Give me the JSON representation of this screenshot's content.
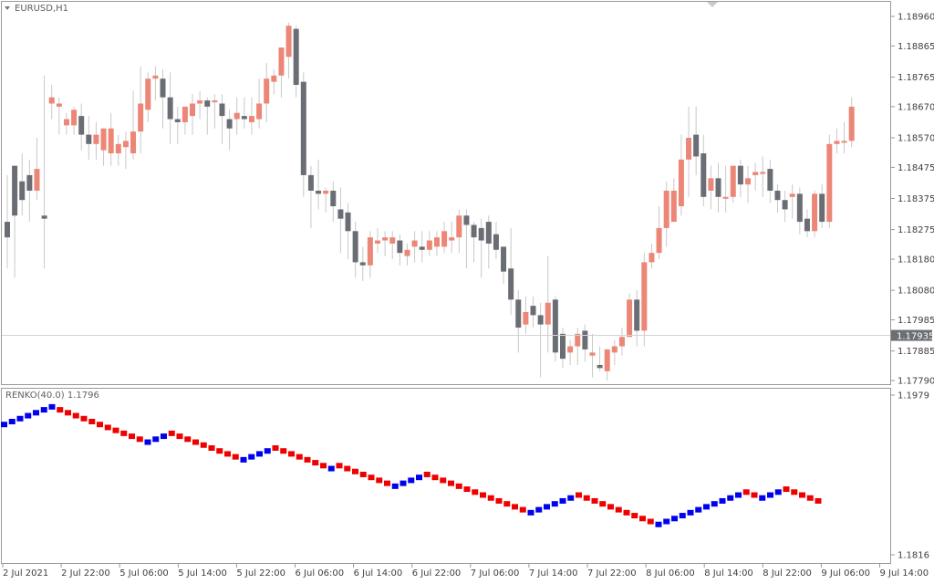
{
  "window": {
    "symbol_label": "EURUSD,H1",
    "indicator_label": "RENKO(40.0) 1.1796"
  },
  "colors": {
    "bull": "#ec8677",
    "bear": "#6a6e74",
    "renko_up": "#0000ee",
    "renko_down": "#ee0000",
    "grid": "#c9c9c9",
    "price_tag_bg": "#6b6e73"
  },
  "chart_data": [
    {
      "type": "candlestick",
      "title": "EURUSD,H1",
      "ylim": [
        1.1779,
        1.1896
      ],
      "y_ticks": [
        "1.18960",
        "1.18865",
        "1.18765",
        "1.18670",
        "1.18570",
        "1.18475",
        "1.18375",
        "1.18275",
        "1.18180",
        "1.18080",
        "1.17985",
        "1.17885",
        "1.17790"
      ],
      "current_price": "1.17935",
      "current_price_value": 1.17935,
      "candles": [
        [
          1.183,
          1.1845,
          1.1825,
          1.1815
        ],
        [
          1.1848,
          1.1848,
          1.1832,
          1.1812
        ],
        [
          1.1843,
          1.1852,
          1.1837,
          1.1832
        ],
        [
          1.1845,
          1.185,
          1.184,
          1.183
        ],
        [
          1.184,
          1.1857,
          1.1847,
          1.1837
        ],
        [
          1.1832,
          1.1877,
          1.1831,
          1.1815
        ],
        [
          1.1868,
          1.1874,
          1.187,
          1.1863
        ],
        [
          1.1867,
          1.187,
          1.1868,
          1.1858
        ],
        [
          1.1861,
          1.1865,
          1.1863,
          1.1858
        ],
        [
          1.1861,
          1.1867,
          1.1866,
          1.1858
        ],
        [
          1.1864,
          1.1868,
          1.1858,
          1.1853
        ],
        [
          1.1858,
          1.1864,
          1.1855,
          1.185
        ],
        [
          1.1855,
          1.1862,
          1.1858,
          1.185
        ],
        [
          1.1853,
          1.1858,
          1.186,
          1.1848
        ],
        [
          1.1852,
          1.1865,
          1.186,
          1.1848
        ],
        [
          1.1852,
          1.1858,
          1.1855,
          1.1848
        ],
        [
          1.1854,
          1.1859,
          1.1856,
          1.1847
        ],
        [
          1.1852,
          1.1872,
          1.1859,
          1.185
        ],
        [
          1.1859,
          1.188,
          1.1868,
          1.1852
        ],
        [
          1.1866,
          1.1878,
          1.1876,
          1.1862
        ],
        [
          1.1876,
          1.188,
          1.1877,
          1.1869
        ],
        [
          1.1876,
          1.1879,
          1.187,
          1.186
        ],
        [
          1.187,
          1.1878,
          1.1863,
          1.1855
        ],
        [
          1.1863,
          1.1867,
          1.1862,
          1.1855
        ],
        [
          1.1862,
          1.1866,
          1.1867,
          1.1858
        ],
        [
          1.1864,
          1.1871,
          1.1868,
          1.1858
        ],
        [
          1.1868,
          1.1872,
          1.1869,
          1.1863
        ],
        [
          1.1869,
          1.187,
          1.1867,
          1.1858
        ],
        [
          1.1869,
          1.1871,
          1.1869,
          1.186
        ],
        [
          1.1868,
          1.1871,
          1.1864,
          1.1855
        ],
        [
          1.1863,
          1.1866,
          1.186,
          1.1853
        ],
        [
          1.1863,
          1.187,
          1.1865,
          1.1858
        ],
        [
          1.1864,
          1.187,
          1.1863,
          1.186
        ],
        [
          1.1862,
          1.187,
          1.1864,
          1.1858
        ],
        [
          1.1863,
          1.1876,
          1.1868,
          1.186
        ],
        [
          1.1868,
          1.1881,
          1.1876,
          1.1862
        ],
        [
          1.1875,
          1.1879,
          1.1877,
          1.1871
        ],
        [
          1.1877,
          1.1885,
          1.1886,
          1.187
        ],
        [
          1.1883,
          1.1894,
          1.1893,
          1.1876
        ],
        [
          1.1892,
          1.1893,
          1.1874,
          1.187
        ],
        [
          1.1875,
          1.1878,
          1.1845,
          1.1838
        ],
        [
          1.1845,
          1.1848,
          1.184,
          1.1828
        ],
        [
          1.184,
          1.185,
          1.1839,
          1.1834
        ],
        [
          1.1839,
          1.1841,
          1.184,
          1.1833
        ],
        [
          1.184,
          1.1843,
          1.1835,
          1.183
        ],
        [
          1.1834,
          1.1841,
          1.1831,
          1.182
        ],
        [
          1.1833,
          1.1836,
          1.1827,
          1.1818
        ],
        [
          1.1827,
          1.183,
          1.1817,
          1.1812
        ],
        [
          1.1817,
          1.1822,
          1.1816,
          1.1811
        ],
        [
          1.1816,
          1.1827,
          1.1825,
          1.1812
        ],
        [
          1.1823,
          1.1828,
          1.1824,
          1.182
        ],
        [
          1.1824,
          1.1827,
          1.1825,
          1.1819
        ],
        [
          1.1823,
          1.1827,
          1.1825,
          1.1818
        ],
        [
          1.1824,
          1.1826,
          1.182,
          1.1816
        ],
        [
          1.1819,
          1.1823,
          1.1821,
          1.1816
        ],
        [
          1.1822,
          1.1827,
          1.1824,
          1.1817
        ],
        [
          1.1822,
          1.1827,
          1.1821,
          1.1817
        ],
        [
          1.1821,
          1.1827,
          1.1824,
          1.1819
        ],
        [
          1.1822,
          1.1827,
          1.1825,
          1.1819
        ],
        [
          1.1822,
          1.183,
          1.1827,
          1.182
        ],
        [
          1.1824,
          1.183,
          1.1825,
          1.182
        ],
        [
          1.1825,
          1.1834,
          1.1832,
          1.182
        ],
        [
          1.1832,
          1.1834,
          1.1829,
          1.1815
        ],
        [
          1.1829,
          1.183,
          1.1825,
          1.1817
        ],
        [
          1.1828,
          1.1831,
          1.1824,
          1.1812
        ],
        [
          1.183,
          1.1832,
          1.1823,
          1.1815
        ],
        [
          1.1826,
          1.183,
          1.1821,
          1.1818
        ],
        [
          1.1822,
          1.1822,
          1.1814,
          1.181
        ],
        [
          1.1815,
          1.1828,
          1.1805,
          1.18
        ],
        [
          1.1805,
          1.1808,
          1.1796,
          1.1788
        ],
        [
          1.1797,
          1.1806,
          1.1801,
          1.1794
        ],
        [
          1.1803,
          1.1806,
          1.18,
          1.1796
        ],
        [
          1.18,
          1.1804,
          1.1797,
          1.178
        ],
        [
          1.1797,
          1.1819,
          1.1804,
          1.1788
        ],
        [
          1.1805,
          1.1806,
          1.1788,
          1.1785
        ],
        [
          1.1794,
          1.1796,
          1.1786,
          1.1783
        ],
        [
          1.1788,
          1.1792,
          1.179,
          1.1784
        ],
        [
          1.179,
          1.1796,
          1.1794,
          1.1784
        ],
        [
          1.1795,
          1.1797,
          1.1789,
          1.1785
        ],
        [
          1.1787,
          1.1794,
          1.1788,
          1.178
        ],
        [
          1.1784,
          1.179,
          1.1783,
          1.1782
        ],
        [
          1.1782,
          1.1789,
          1.1789,
          1.1779
        ],
        [
          1.1788,
          1.1792,
          1.179,
          1.1784
        ],
        [
          1.179,
          1.1796,
          1.1793,
          1.1787
        ],
        [
          1.1793,
          1.1807,
          1.1805,
          1.1793
        ],
        [
          1.1805,
          1.1808,
          1.1795,
          1.179
        ],
        [
          1.1795,
          1.182,
          1.1817,
          1.179
        ],
        [
          1.1817,
          1.1823,
          1.182,
          1.1815
        ],
        [
          1.182,
          1.1835,
          1.1828,
          1.1818
        ],
        [
          1.1828,
          1.1843,
          1.184,
          1.1822
        ],
        [
          1.183,
          1.1844,
          1.184,
          1.183
        ],
        [
          1.1835,
          1.1858,
          1.185,
          1.1832
        ],
        [
          1.185,
          1.1867,
          1.1857,
          1.1838
        ],
        [
          1.1858,
          1.1867,
          1.1851,
          1.1845
        ],
        [
          1.1852,
          1.1858,
          1.1838,
          1.1835
        ],
        [
          1.184,
          1.1848,
          1.1844,
          1.1834
        ],
        [
          1.1844,
          1.1849,
          1.1838,
          1.1833
        ],
        [
          1.1838,
          1.1848,
          1.1838,
          1.1833
        ],
        [
          1.1838,
          1.1848,
          1.1848,
          1.1836
        ],
        [
          1.1848,
          1.185,
          1.1842,
          1.1838
        ],
        [
          1.1842,
          1.1848,
          1.1844,
          1.1836
        ],
        [
          1.1845,
          1.1849,
          1.1846,
          1.184
        ],
        [
          1.1846,
          1.1851,
          1.1846,
          1.1838
        ],
        [
          1.1847,
          1.185,
          1.184,
          1.1836
        ],
        [
          1.184,
          1.1842,
          1.1837,
          1.1833
        ],
        [
          1.1837,
          1.184,
          1.1834,
          1.183
        ],
        [
          1.1838,
          1.1842,
          1.1839,
          1.1831
        ],
        [
          1.1839,
          1.1841,
          1.183,
          1.1826
        ],
        [
          1.1831,
          1.1834,
          1.1827,
          1.1825
        ],
        [
          1.1827,
          1.184,
          1.1839,
          1.1825
        ],
        [
          1.1839,
          1.1842,
          1.183,
          1.1828
        ],
        [
          1.183,
          1.1858,
          1.1855,
          1.1828
        ],
        [
          1.1855,
          1.186,
          1.1856,
          1.1852
        ],
        [
          1.1856,
          1.1862,
          1.1856,
          1.1852
        ],
        [
          1.1856,
          1.187,
          1.1867,
          1.1854
        ]
      ]
    },
    {
      "type": "renko",
      "title": "RENKO(40.0) 1.1796",
      "ylim": [
        1.1816,
        1.1979
      ],
      "y_ticks": [
        "1.1979",
        "1.1816"
      ],
      "directions": "UUUUUUUDDDDDDDDDDDUUUDDDDDDDDDUUUUDDDDDDDUDDDDDDDUUUUDDDDDDDDDDDDDUUUUUUDDDDDDDDDDUUUUUUUUUUUDDUUUDDDD",
      "brick_values": [
        1.1949,
        1.1952,
        1.1955,
        1.1958,
        1.1961,
        1.1964,
        1.1967,
        1.1964,
        1.1961,
        1.1958,
        1.1955,
        1.1952,
        1.1949,
        1.1946,
        1.1943,
        1.194,
        1.1937,
        1.1934,
        1.1931,
        1.1934,
        1.1937,
        1.194,
        1.1937,
        1.1934,
        1.1931,
        1.1928,
        1.1925,
        1.1922,
        1.1919,
        1.1916,
        1.1913,
        1.1916,
        1.1919,
        1.1922,
        1.1925,
        1.1922,
        1.1919,
        1.1916,
        1.1913,
        1.191,
        1.1907,
        1.1904,
        1.1907,
        1.1904,
        1.1901,
        1.1898,
        1.1895,
        1.1892,
        1.1889,
        1.1886,
        1.1889,
        1.1892,
        1.1895,
        1.1898,
        1.1895,
        1.1892,
        1.1889,
        1.1886,
        1.1883,
        1.188,
        1.1877,
        1.1874,
        1.1871,
        1.1868,
        1.1865,
        1.1862,
        1.1859,
        1.1862,
        1.1865,
        1.1868,
        1.1871,
        1.1874,
        1.1877,
        1.1874,
        1.1871,
        1.1868,
        1.1865,
        1.1862,
        1.1859,
        1.1856,
        1.1853,
        1.185,
        1.1847,
        1.185,
        1.1853,
        1.1856,
        1.1859,
        1.1862,
        1.1865,
        1.1868,
        1.1871,
        1.1874,
        1.1877,
        1.188,
        1.1877,
        1.1874,
        1.1877,
        1.188,
        1.1883,
        1.188,
        1.1877,
        1.1874,
        1.1871
      ]
    }
  ],
  "x_axis": {
    "tick_labels": [
      "2 Jul 2021",
      "2 Jul 22:00",
      "5 Jul 06:00",
      "5 Jul 14:00",
      "5 Jul 22:00",
      "6 Jul 06:00",
      "6 Jul 14:00",
      "6 Jul 22:00",
      "7 Jul 06:00",
      "7 Jul 14:00",
      "7 Jul 22:00",
      "8 Jul 06:00",
      "8 Jul 14:00",
      "8 Jul 22:00",
      "9 Jul 06:00",
      "9 Jul 14:00"
    ]
  }
}
